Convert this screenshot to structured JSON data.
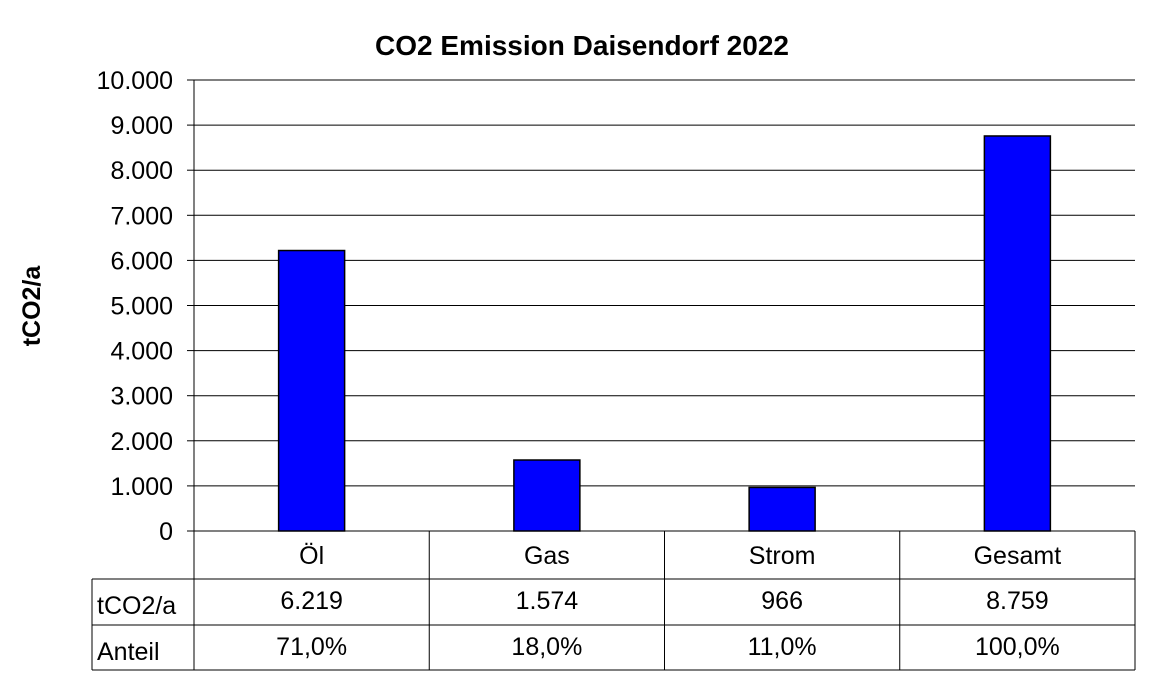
{
  "chart_data": {
    "type": "bar",
    "title": "CO2 Emission Daisendorf 2022",
    "ylabel": "tCO2/a",
    "xlabel": "",
    "ylim": [
      0,
      10000
    ],
    "yticks": [
      0,
      1000,
      2000,
      3000,
      4000,
      5000,
      6000,
      7000,
      8000,
      9000,
      10000
    ],
    "ytick_labels": [
      "0",
      "1.000",
      "2.000",
      "3.000",
      "4.000",
      "5.000",
      "6.000",
      "7.000",
      "8.000",
      "9.000",
      "10.000"
    ],
    "grid": true,
    "legend": "none",
    "categories": [
      "Öl",
      "Gas",
      "Strom",
      "Gesamt"
    ],
    "series": [
      {
        "values": [
          6219,
          1574,
          966,
          8759
        ],
        "color": "#0000FF"
      }
    ],
    "table": {
      "rows": [
        {
          "label": "tCO2/a",
          "cells": [
            "6.219",
            "1.574",
            "966",
            "8.759"
          ]
        },
        {
          "label": "Anteil",
          "cells": [
            "71,0%",
            "18,0%",
            "11,0%",
            "100,0%"
          ]
        }
      ]
    }
  }
}
